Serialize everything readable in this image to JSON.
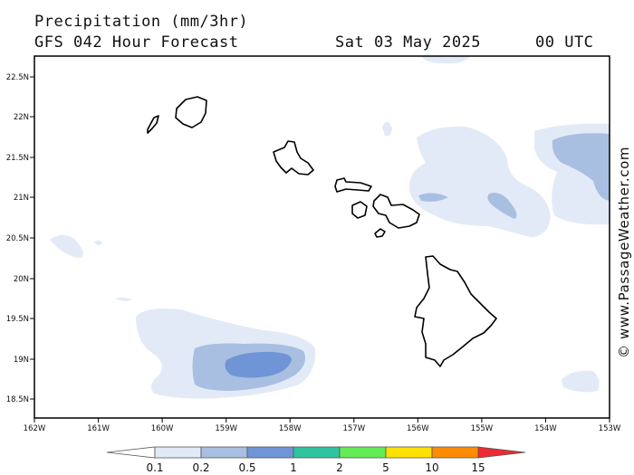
{
  "header": {
    "title": "Precipitation (mm/3hr)",
    "subtitle": "GFS 042 Hour Forecast",
    "date": "Sat 03 May 2025",
    "time": "00 UTC"
  },
  "map": {
    "lat_labels": [
      "22.5N",
      "22N",
      "21.5N",
      "21N",
      "20.5N",
      "20N",
      "19.5N",
      "19N",
      "18.5N"
    ],
    "lon_labels": [
      "162W",
      "161W",
      "160W",
      "159W",
      "158W",
      "157W",
      "156W",
      "155W",
      "154W",
      "153W"
    ]
  },
  "legend": {
    "labels": [
      "0.1",
      "0.2",
      "0.5",
      "1",
      "2",
      "5",
      "10",
      "15"
    ],
    "colors": [
      "#ffffff",
      "#e3eaf7",
      "#a9bfe1",
      "#6f95d7",
      "#2ec4a0",
      "#64ec56",
      "#fde102",
      "#fd8c02",
      "#ec2a34"
    ]
  },
  "credit": "© www.PassageWeather.com"
}
